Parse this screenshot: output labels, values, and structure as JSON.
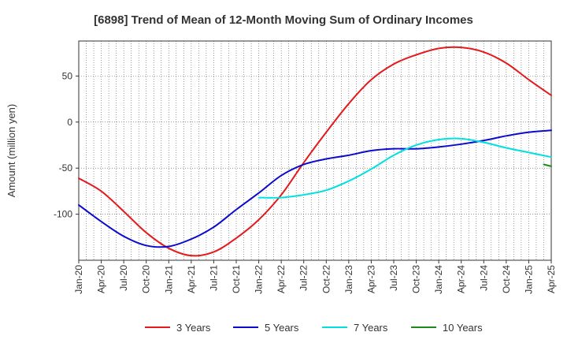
{
  "chart_data": {
    "type": "line",
    "title": "[6898]  Trend of Mean of 12-Month Moving Sum of Ordinary Incomes",
    "xlabel": "",
    "ylabel": "Amount (million yen)",
    "x_ticks": [
      "Jan-20",
      "Apr-20",
      "Jul-20",
      "Oct-20",
      "Jan-21",
      "Apr-21",
      "Jul-21",
      "Oct-21",
      "Jan-22",
      "Apr-22",
      "Jul-22",
      "Oct-22",
      "Jan-23",
      "Apr-23",
      "Jul-23",
      "Oct-23",
      "Jan-24",
      "Apr-24",
      "Jul-24",
      "Oct-24",
      "Jan-25",
      "Apr-25"
    ],
    "y_ticks": [
      50,
      0,
      -50,
      -100
    ],
    "ylim": [
      -150,
      88
    ],
    "xlim_months": [
      0,
      63
    ],
    "grid": true,
    "legend_position": "bottom",
    "series": [
      {
        "name": "3 Years",
        "color": "#e41a1c",
        "x_months": [
          0,
          3,
          6,
          9,
          12,
          15,
          18,
          21,
          24,
          27,
          30,
          33,
          36,
          39,
          42,
          45,
          48,
          51,
          54,
          57,
          60,
          63
        ],
        "values": [
          -61,
          -75,
          -97,
          -120,
          -137,
          -145,
          -141,
          -126,
          -106,
          -79,
          -44,
          -11,
          20,
          46,
          63,
          73,
          80,
          81,
          76,
          64,
          46,
          29
        ]
      },
      {
        "name": "5 Years",
        "color": "#0b0bd0",
        "x_months": [
          0,
          3,
          6,
          9,
          12,
          15,
          18,
          21,
          24,
          27,
          30,
          33,
          36,
          39,
          42,
          45,
          48,
          51,
          54,
          57,
          60,
          63
        ],
        "values": [
          -90,
          -108,
          -124,
          -134,
          -135,
          -127,
          -114,
          -95,
          -77,
          -58,
          -46,
          -40,
          -36,
          -31,
          -29,
          -29,
          -27,
          -24,
          -20,
          -15,
          -11,
          -9
        ]
      },
      {
        "name": "7 Years",
        "color": "#00e0e0",
        "x_months": [
          24,
          27,
          30,
          33,
          36,
          39,
          42,
          45,
          48,
          51,
          54,
          57,
          60,
          63
        ],
        "values": [
          -82,
          -82,
          -79,
          -74,
          -64,
          -51,
          -36,
          -25,
          -19,
          -18,
          -22,
          -28,
          -33,
          -38
        ]
      },
      {
        "name": "10 Years",
        "color": "#1e8a1e",
        "x_months": [
          62,
          63
        ],
        "values": [
          -46,
          -48
        ]
      }
    ]
  }
}
